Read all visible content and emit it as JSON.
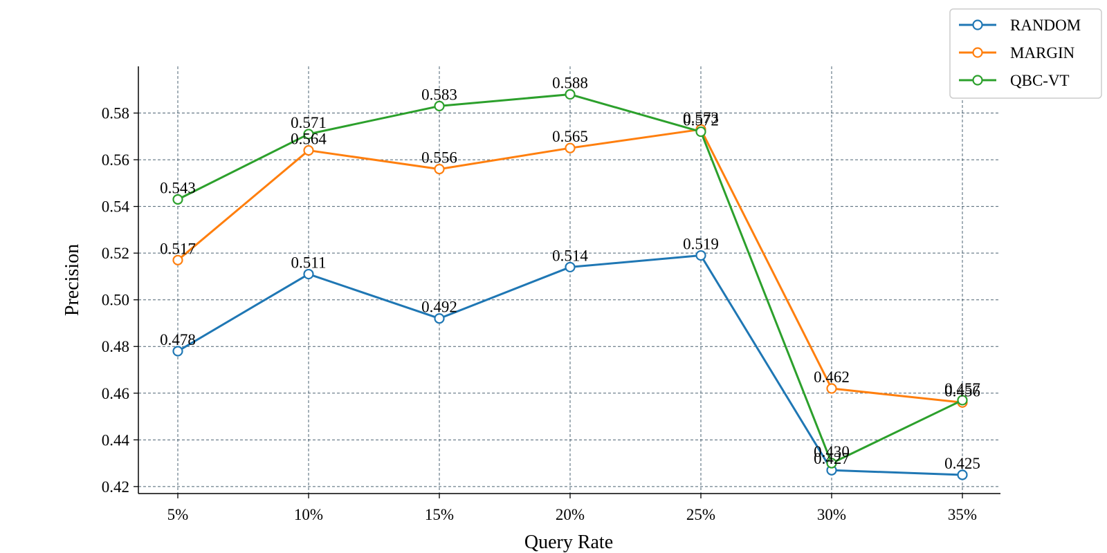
{
  "chart_data": {
    "type": "line",
    "xlabel": "Query Rate",
    "ylabel": "Precision",
    "categories": [
      "5%",
      "10%",
      "15%",
      "20%",
      "25%",
      "30%",
      "35%"
    ],
    "ylim": [
      0.417,
      0.6
    ],
    "yticks": [
      0.42,
      0.44,
      0.46,
      0.48,
      0.5,
      0.52,
      0.54,
      0.56,
      0.58
    ],
    "grid": true,
    "legend_position": "top-right",
    "series": [
      {
        "name": "RANDOM",
        "color": "#1f77b4",
        "values": [
          0.478,
          0.511,
          0.492,
          0.514,
          0.519,
          0.427,
          0.425
        ]
      },
      {
        "name": "MARGIN",
        "color": "#ff7f0e",
        "values": [
          0.517,
          0.564,
          0.556,
          0.565,
          0.573,
          0.462,
          0.456
        ]
      },
      {
        "name": "QBC-VT",
        "color": "#2ca02c",
        "values": [
          0.543,
          0.571,
          0.583,
          0.588,
          0.572,
          0.43,
          0.457
        ]
      }
    ]
  }
}
